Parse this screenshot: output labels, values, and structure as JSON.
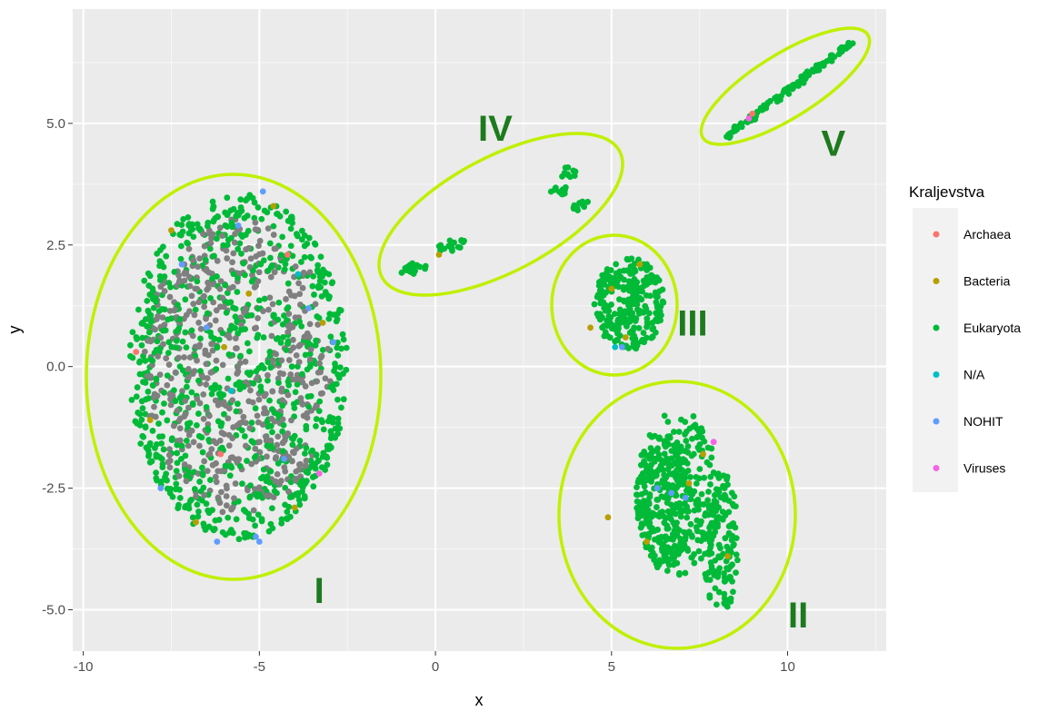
{
  "chart_data": {
    "type": "scatter",
    "title": "",
    "xlabel": "x",
    "ylabel": "y",
    "xlim": [
      -10.3,
      12.8
    ],
    "ylim": [
      -5.85,
      7.35
    ],
    "xticks": [
      -10,
      -5,
      0,
      5,
      10
    ],
    "xtick_labels": [
      "-10",
      "-5",
      "0",
      "5",
      "10"
    ],
    "yticks": [
      -5,
      -2.5,
      0,
      2.5,
      5
    ],
    "ytick_labels": [
      "-5.0",
      "-2.5",
      "0.0",
      "2.5",
      "5.0"
    ],
    "grid": true,
    "legend_placement": "right",
    "legend_title": "Kraljevstva",
    "series": [
      {
        "name": "Archaea",
        "color": "#F8766D",
        "points": [
          [
            -8.5,
            0.3
          ],
          [
            -4.2,
            2.3
          ],
          [
            9.0,
            5.2
          ],
          [
            -6.1,
            -1.8
          ]
        ]
      },
      {
        "name": "Bacteria",
        "color": "#B79F00",
        "points": [
          [
            -7.5,
            2.8
          ],
          [
            -6.8,
            -3.2
          ],
          [
            -5.3,
            1.5
          ],
          [
            -4.0,
            -2.9
          ],
          [
            -3.2,
            0.9
          ],
          [
            -8.1,
            -1.1
          ],
          [
            -6.0,
            0.4
          ],
          [
            -4.6,
            3.3
          ],
          [
            4.4,
            0.8
          ],
          [
            5.0,
            1.6
          ],
          [
            5.4,
            0.6
          ],
          [
            5.8,
            2.1
          ],
          [
            4.9,
            -3.1
          ],
          [
            6.0,
            -3.6
          ],
          [
            7.6,
            -1.8
          ],
          [
            8.3,
            -3.9
          ],
          [
            7.2,
            -2.4
          ],
          [
            0.1,
            2.3
          ]
        ]
      },
      {
        "name": "Eukaryota",
        "color": "#00BA38",
        "points": []
      },
      {
        "name": "N/A",
        "color": "#00BFC4",
        "points": [
          [
            -5.8,
            -0.5
          ],
          [
            -3.9,
            1.9
          ],
          [
            5.1,
            0.4
          ]
        ]
      },
      {
        "name": "NOHIT",
        "color": "#619CFF",
        "points": [
          [
            -6.5,
            0.8
          ],
          [
            -5.1,
            -3.5
          ],
          [
            -3.6,
            1.2
          ],
          [
            -7.2,
            2.1
          ],
          [
            -4.3,
            -1.9
          ],
          [
            -2.9,
            0.5
          ],
          [
            -5.6,
            2.9
          ],
          [
            -7.8,
            -2.5
          ],
          [
            -4.9,
            3.6
          ],
          [
            5.3,
            0.4
          ],
          [
            6.3,
            -2.5
          ],
          [
            7.1,
            -2.7
          ],
          [
            6.7,
            -2.6
          ],
          [
            -6.2,
            -3.6
          ],
          [
            -5.0,
            -3.6
          ]
        ]
      },
      {
        "name": "Viruses",
        "color": "#F564E3",
        "points": [
          [
            -3.3,
            -2.2
          ],
          [
            7.9,
            -1.55
          ],
          [
            8.9,
            5.1
          ]
        ]
      }
    ],
    "unlabeled_points_color": "#7F7F7F",
    "ellipse_color": "#BFF000",
    "annotations": [
      {
        "label": "I",
        "x": -3.3,
        "y": -4.6
      },
      {
        "label": "II",
        "x": 10.3,
        "y": -5.1
      },
      {
        "label": "III",
        "x": 7.3,
        "y": 0.9
      },
      {
        "label": "IV",
        "x": 1.7,
        "y": 4.9
      },
      {
        "label": "V",
        "x": 11.3,
        "y": 4.6
      }
    ]
  }
}
